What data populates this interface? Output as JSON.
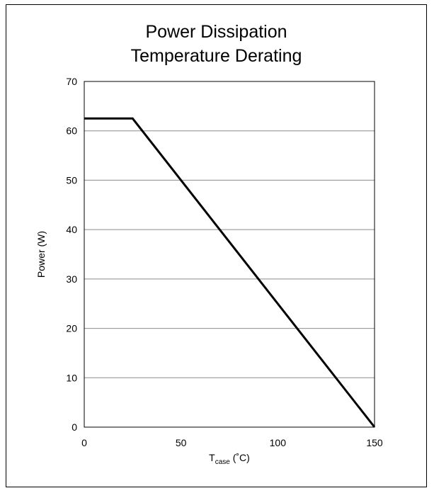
{
  "chart_data": {
    "type": "line",
    "title_line1": "Power Dissipation",
    "title_line2": "Temperature Derating",
    "xlabel_main": "T",
    "xlabel_sub": "case",
    "xlabel_unit": " (˚C)",
    "ylabel": "Power  (W)",
    "xlim": [
      0,
      150
    ],
    "ylim": [
      0,
      70
    ],
    "xticks": [
      0,
      50,
      100,
      150
    ],
    "yticks": [
      0,
      10,
      20,
      30,
      40,
      50,
      60,
      70
    ],
    "grid": "horizontal",
    "legend": "none",
    "series": [
      {
        "x": [
          0,
          25,
          150
        ],
        "y": [
          62.5,
          62.5,
          0
        ],
        "color": "#000000"
      }
    ]
  }
}
